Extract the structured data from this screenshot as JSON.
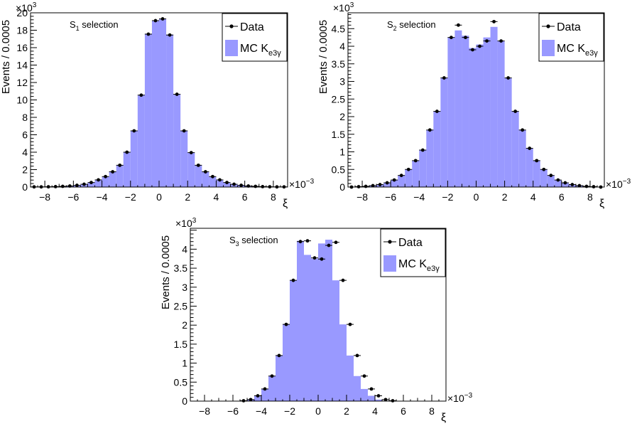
{
  "legend": {
    "data_label": "Data",
    "mc_label": "MC K",
    "mc_sub": "e3γ"
  },
  "colors": {
    "mc_fill": "#9999ff",
    "data_marker": "#000000",
    "frame": "#000000"
  },
  "chart_data": [
    {
      "type": "bar",
      "panel": "S1",
      "annotation": {
        "main": "S",
        "sub": "1",
        "rest": " selection"
      },
      "ylabel": "Events / 0.0005",
      "xlabel": "ξ",
      "x_exponent": "×10",
      "x_exponent_power": "−3",
      "y_exponent": "×10",
      "y_exponent_power": "3",
      "x_ticks": [
        "−8",
        "−6",
        "−4",
        "−2",
        "0",
        "2",
        "4",
        "6",
        "8"
      ],
      "x_tick_values": [
        -8,
        -6,
        -4,
        -2,
        0,
        2,
        4,
        6,
        8
      ],
      "y_ticks": [
        "0",
        "2",
        "4",
        "6",
        "8",
        "10",
        "12",
        "14",
        "16",
        "18",
        "20"
      ],
      "y_tick_values": [
        0,
        2,
        4,
        6,
        8,
        10,
        12,
        14,
        16,
        18,
        20
      ],
      "xlim": [
        -9,
        9
      ],
      "ylim": [
        0,
        20
      ],
      "bin_width": 0.5,
      "bin_centers": [
        -8.75,
        -8.25,
        -7.75,
        -7.25,
        -6.75,
        -6.25,
        -5.75,
        -5.25,
        -4.75,
        -4.25,
        -3.75,
        -3.25,
        -2.75,
        -2.25,
        -1.75,
        -1.25,
        -0.75,
        -0.25,
        0.25,
        0.75,
        1.25,
        1.75,
        2.25,
        2.75,
        3.25,
        3.75,
        4.25,
        4.75,
        5.25,
        5.75,
        6.25,
        6.75,
        7.25,
        7.75,
        8.25,
        8.75
      ],
      "series": [
        {
          "name": "MC K",
          "values": [
            0.02,
            0.02,
            0.03,
            0.05,
            0.08,
            0.12,
            0.18,
            0.3,
            0.5,
            0.8,
            1.15,
            1.75,
            2.5,
            4.0,
            6.45,
            10.55,
            17.6,
            19.05,
            19.3,
            17.5,
            10.65,
            6.45,
            3.95,
            2.5,
            1.75,
            1.15,
            0.8,
            0.5,
            0.3,
            0.18,
            0.12,
            0.08,
            0.05,
            0.03,
            0.02,
            0.02
          ]
        },
        {
          "name": "Data",
          "values": [
            0.02,
            0.02,
            0.03,
            0.05,
            0.08,
            0.12,
            0.2,
            0.32,
            0.52,
            0.82,
            1.2,
            1.75,
            2.5,
            4.0,
            6.45,
            10.55,
            17.55,
            19.1,
            19.3,
            17.45,
            10.65,
            6.45,
            3.95,
            2.5,
            1.75,
            1.2,
            0.82,
            0.52,
            0.32,
            0.2,
            0.12,
            0.08,
            0.05,
            0.03,
            0.02,
            0.02
          ]
        }
      ]
    },
    {
      "type": "bar",
      "panel": "S2",
      "annotation": {
        "main": "S",
        "sub": "2",
        "rest": " selection"
      },
      "ylabel": "Events / 0.0005",
      "xlabel": "ξ",
      "x_exponent": "×10",
      "x_exponent_power": "−3",
      "y_exponent": "×10",
      "y_exponent_power": "3",
      "x_ticks": [
        "−8",
        "−6",
        "−4",
        "−2",
        "0",
        "2",
        "4",
        "6",
        "8"
      ],
      "x_tick_values": [
        -8,
        -6,
        -4,
        -2,
        0,
        2,
        4,
        6,
        8
      ],
      "y_ticks": [
        "0",
        "0.5",
        "1",
        "1.5",
        "2",
        "2.5",
        "3",
        "3.5",
        "4",
        "4.5"
      ],
      "y_tick_values": [
        0,
        0.5,
        1,
        1.5,
        2,
        2.5,
        3,
        3.5,
        4,
        4.5
      ],
      "xlim": [
        -9,
        9
      ],
      "ylim": [
        0,
        4.95
      ],
      "bin_width": 0.5,
      "bin_centers": [
        -8.75,
        -8.25,
        -7.75,
        -7.25,
        -6.75,
        -6.25,
        -5.75,
        -5.25,
        -4.75,
        -4.25,
        -3.75,
        -3.25,
        -2.75,
        -2.25,
        -1.75,
        -1.25,
        -0.75,
        -0.25,
        0.25,
        0.75,
        1.25,
        1.75,
        2.25,
        2.75,
        3.25,
        3.75,
        4.25,
        4.75,
        5.25,
        5.75,
        6.25,
        6.75,
        7.25,
        7.75,
        8.25,
        8.75
      ],
      "series": [
        {
          "name": "MC K",
          "values": [
            0.0,
            0.01,
            0.02,
            0.04,
            0.07,
            0.12,
            0.2,
            0.33,
            0.5,
            0.75,
            1.06,
            1.62,
            2.15,
            3.1,
            4.25,
            4.45,
            4.3,
            3.95,
            4.05,
            4.25,
            4.55,
            4.15,
            3.1,
            2.15,
            1.62,
            1.1,
            0.75,
            0.5,
            0.33,
            0.2,
            0.12,
            0.07,
            0.04,
            0.02,
            0.01,
            0.0
          ]
        },
        {
          "name": "Data",
          "values": [
            0.0,
            0.01,
            0.02,
            0.04,
            0.07,
            0.12,
            0.2,
            0.33,
            0.5,
            0.75,
            1.05,
            1.62,
            2.15,
            3.1,
            4.25,
            4.6,
            4.25,
            3.9,
            4.0,
            4.15,
            4.7,
            4.15,
            3.1,
            2.15,
            1.62,
            1.1,
            0.75,
            0.5,
            0.33,
            0.2,
            0.12,
            0.07,
            0.04,
            0.02,
            0.01,
            0.0
          ]
        }
      ]
    },
    {
      "type": "bar",
      "panel": "S3",
      "annotation": {
        "main": "S",
        "sub": "3",
        "rest": " selection"
      },
      "ylabel": "Events / 0.0005",
      "xlabel": "ξ",
      "x_exponent": "×10",
      "x_exponent_power": "−3",
      "y_exponent": "×10",
      "y_exponent_power": "3",
      "x_ticks": [
        "−8",
        "−6",
        "−4",
        "−2",
        "0",
        "2",
        "4",
        "6",
        "8"
      ],
      "x_tick_values": [
        -8,
        -6,
        -4,
        -2,
        0,
        2,
        4,
        6,
        8
      ],
      "y_ticks": [
        "0",
        "0.5",
        "1",
        "1.5",
        "2",
        "2.5",
        "3",
        "3.5",
        "4"
      ],
      "y_tick_values": [
        0,
        0.5,
        1,
        1.5,
        2,
        2.5,
        3,
        3.5,
        4
      ],
      "xlim": [
        -9,
        9
      ],
      "ylim": [
        0,
        4.55
      ],
      "bin_width": 0.5,
      "bin_centers": [
        -8.75,
        -8.25,
        -7.75,
        -7.25,
        -6.75,
        -6.25,
        -5.75,
        -5.25,
        -4.75,
        -4.25,
        -3.75,
        -3.25,
        -2.75,
        -2.25,
        -1.75,
        -1.25,
        -0.75,
        -0.25,
        0.25,
        0.75,
        1.25,
        1.75,
        2.25,
        2.75,
        3.25,
        3.75,
        4.25,
        4.75,
        5.25,
        5.75,
        6.25,
        6.75,
        7.25,
        7.75,
        8.25,
        8.75
      ],
      "series": [
        {
          "name": "MC K",
          "values": [
            0,
            0,
            0,
            0,
            0,
            0,
            0,
            0.01,
            0.04,
            0.14,
            0.32,
            0.66,
            1.2,
            2.02,
            3.18,
            4.22,
            3.85,
            3.75,
            4.15,
            4.25,
            3.18,
            2.02,
            1.2,
            0.66,
            0.32,
            0.14,
            0.04,
            0.01,
            0,
            0,
            0,
            0,
            0,
            0,
            0,
            0
          ]
        },
        {
          "name": "Data",
          "values": [
            0,
            0,
            0,
            0,
            0,
            0,
            0,
            0.01,
            0.04,
            0.14,
            0.32,
            0.66,
            1.2,
            2.02,
            3.18,
            4.2,
            4.22,
            3.77,
            3.74,
            4.1,
            4.18,
            3.18,
            2.02,
            1.2,
            0.66,
            0.32,
            0.14,
            0.04,
            0.01,
            0,
            0,
            0,
            0,
            0,
            0,
            0
          ]
        }
      ]
    }
  ]
}
